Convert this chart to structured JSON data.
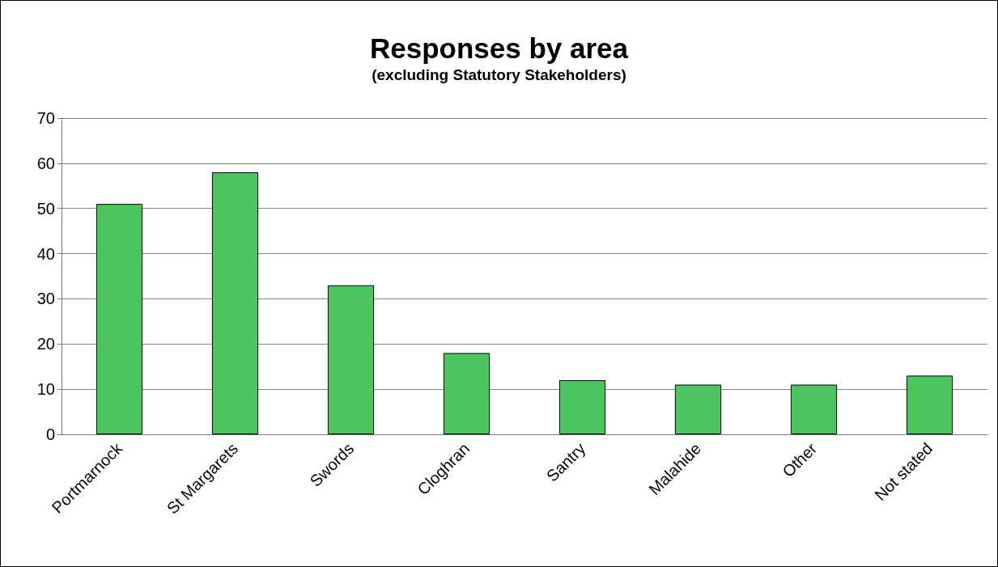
{
  "chart_data": {
    "type": "bar",
    "title": "Responses by area",
    "subtitle": "(excluding Statutory Stakeholders)",
    "categories": [
      "Portmarnock",
      "St Margarets",
      "Swords",
      "Cloghran",
      "Santry",
      "Malahide",
      "Other",
      "Not stated"
    ],
    "series": [
      {
        "color": "#4cc75f",
        "values": [
          51,
          58,
          33,
          18,
          12,
          11,
          11,
          13
        ]
      }
    ],
    "ylim": [
      0,
      70
    ],
    "yticks": [
      0,
      10,
      20,
      30,
      40,
      50,
      60,
      70
    ],
    "grid": "y"
  }
}
